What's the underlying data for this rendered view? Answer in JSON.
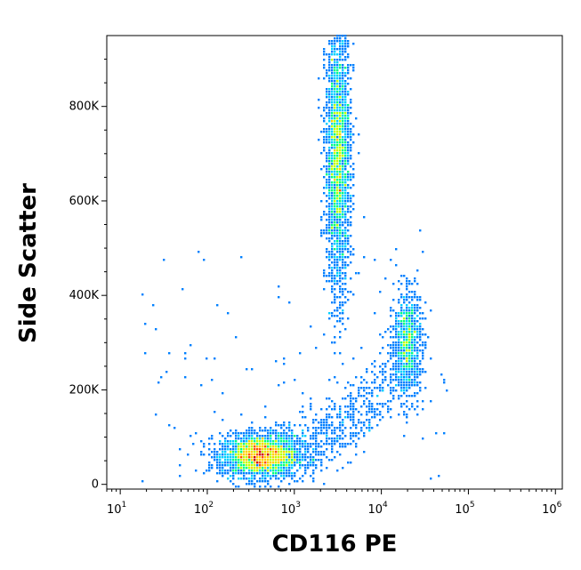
{
  "chart_data": {
    "type": "scatter",
    "style": "density-dot-plot",
    "xlabel": "CD116 PE",
    "ylabel": "Side Scatter",
    "x_scale": "log",
    "xlim": [
      7,
      1200000
    ],
    "ylim": [
      -10000,
      950000
    ],
    "x_ticks": [
      {
        "value": 10,
        "base": "10",
        "exp": "1"
      },
      {
        "value": 100,
        "base": "10",
        "exp": "2"
      },
      {
        "value": 1000,
        "base": "10",
        "exp": "3"
      },
      {
        "value": 10000,
        "base": "10",
        "exp": "4"
      },
      {
        "value": 100000,
        "base": "10",
        "exp": "5"
      },
      {
        "value": 1000000,
        "base": "10",
        "exp": "6"
      }
    ],
    "y_ticks": [
      {
        "value": 0,
        "label": "0"
      },
      {
        "value": 200000,
        "label": "200K"
      },
      {
        "value": 400000,
        "label": "400K"
      },
      {
        "value": 600000,
        "label": "600K"
      },
      {
        "value": 800000,
        "label": "800K"
      }
    ],
    "populations": [
      {
        "name": "",
        "x_center": 400,
        "y_center": 60000,
        "x_spread_log": 0.22,
        "y_spread": 22000,
        "n": 2600
      },
      {
        "name": "",
        "x_center": 3200,
        "y_center": 690000,
        "x_spread_log": 0.07,
        "y_spread": 140000,
        "n": 2600
      },
      {
        "name": "",
        "x_center": 20000,
        "y_center": 300000,
        "x_spread_log": 0.08,
        "y_spread": 55000,
        "n": 900
      }
    ],
    "colors": {
      "density_scale": [
        "#0000ff",
        "#0080ff",
        "#00d0ff",
        "#00ff80",
        "#c0ff00",
        "#ffd000",
        "#ff5000",
        "#d00000"
      ]
    },
    "grid": false
  }
}
